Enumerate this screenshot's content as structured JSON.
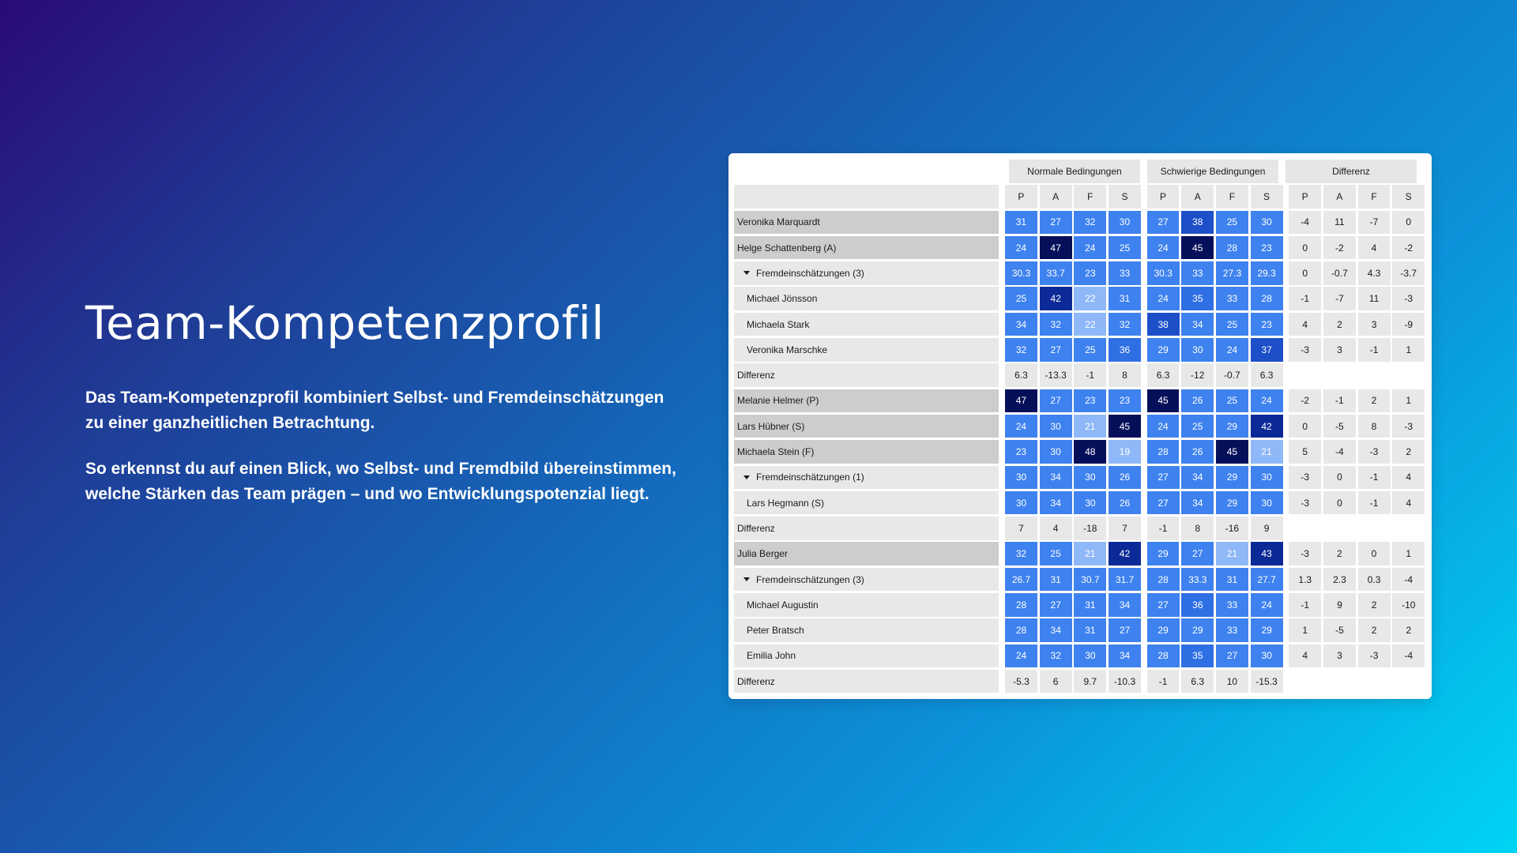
{
  "hero": {
    "title": "Team-Kompetenzprofil",
    "paragraph1": "Das Team-Kompetenzprofil kombiniert Selbst- und Fremdeinschätzungen\nzu einer ganzheitlichen Betrachtung.",
    "paragraph2": "So erkennst du auf einen Blick, wo Selbst- und Fremdbild übereinstimmen,\nwelche Stärken das Team prägen – und wo Entwicklungspotenzial liegt."
  },
  "table": {
    "group_headers": [
      "Normale Bedingungen",
      "Schwierige Bedingungen",
      "Differenz"
    ],
    "column_letters": [
      "P",
      "A",
      "F",
      "S"
    ],
    "rows": [
      {
        "label": "Veronika Marquardt",
        "kind": "person",
        "normal": [
          "31",
          "27",
          "32",
          "30"
        ],
        "schwierig": [
          "27",
          "38",
          "25",
          "30"
        ],
        "diff": [
          "-4",
          "11",
          "-7",
          "0"
        ]
      },
      {
        "label": "Helge Schattenberg (A)",
        "kind": "person",
        "normal": [
          "24",
          "47",
          "24",
          "25"
        ],
        "schwierig": [
          "24",
          "45",
          "28",
          "23"
        ],
        "diff": [
          "0",
          "-2",
          "4",
          "-2"
        ]
      },
      {
        "label": "Fremdeinschätzungen (3)",
        "kind": "group",
        "normal": [
          "30.3",
          "33.7",
          "23",
          "33"
        ],
        "schwierig": [
          "30.3",
          "33",
          "27.3",
          "29.3"
        ],
        "diff": [
          "0",
          "-0.7",
          "4.3",
          "-3.7"
        ]
      },
      {
        "label": "Michael Jönsson",
        "kind": "sub",
        "normal": [
          "25",
          "42",
          "22",
          "31"
        ],
        "schwierig": [
          "24",
          "35",
          "33",
          "28"
        ],
        "diff": [
          "-1",
          "-7",
          "11",
          "-3"
        ]
      },
      {
        "label": "Michaela Stark",
        "kind": "sub",
        "normal": [
          "34",
          "32",
          "22",
          "32"
        ],
        "schwierig": [
          "38",
          "34",
          "25",
          "23"
        ],
        "diff": [
          "4",
          "2",
          "3",
          "-9"
        ]
      },
      {
        "label": "Veronika Marschke",
        "kind": "sub",
        "normal": [
          "32",
          "27",
          "25",
          "36"
        ],
        "schwierig": [
          "29",
          "30",
          "24",
          "37"
        ],
        "diff": [
          "-3",
          "3",
          "-1",
          "1"
        ]
      },
      {
        "label": "Differenz",
        "kind": "differenz",
        "normal": [
          "6.3",
          "-13.3",
          "-1",
          "8"
        ],
        "schwierig": [
          "6.3",
          "-12",
          "-0.7",
          "6.3"
        ],
        "diff": []
      },
      {
        "label": "Melanie Helmer (P)",
        "kind": "person",
        "normal": [
          "47",
          "27",
          "23",
          "23"
        ],
        "schwierig": [
          "45",
          "26",
          "25",
          "24"
        ],
        "diff": [
          "-2",
          "-1",
          "2",
          "1"
        ]
      },
      {
        "label": "Lars Hübner (S)",
        "kind": "person",
        "normal": [
          "24",
          "30",
          "21",
          "45"
        ],
        "schwierig": [
          "24",
          "25",
          "29",
          "42"
        ],
        "diff": [
          "0",
          "-5",
          "8",
          "-3"
        ]
      },
      {
        "label": "Michaela Stein (F)",
        "kind": "person",
        "normal": [
          "23",
          "30",
          "48",
          "19"
        ],
        "schwierig": [
          "28",
          "26",
          "45",
          "21"
        ],
        "diff": [
          "5",
          "-4",
          "-3",
          "2"
        ]
      },
      {
        "label": "Fremdeinschätzungen (1)",
        "kind": "group",
        "normal": [
          "30",
          "34",
          "30",
          "26"
        ],
        "schwierig": [
          "27",
          "34",
          "29",
          "30"
        ],
        "diff": [
          "-3",
          "0",
          "-1",
          "4"
        ]
      },
      {
        "label": "Lars Hegmann (S)",
        "kind": "sub",
        "normal": [
          "30",
          "34",
          "30",
          "26"
        ],
        "schwierig": [
          "27",
          "34",
          "29",
          "30"
        ],
        "diff": [
          "-3",
          "0",
          "-1",
          "4"
        ]
      },
      {
        "label": "Differenz",
        "kind": "differenz",
        "normal": [
          "7",
          "4",
          "-18",
          "7"
        ],
        "schwierig": [
          "-1",
          "8",
          "-16",
          "9"
        ],
        "diff": []
      },
      {
        "label": "Julia Berger",
        "kind": "person",
        "normal": [
          "32",
          "25",
          "21",
          "42"
        ],
        "schwierig": [
          "29",
          "27",
          "21",
          "43"
        ],
        "diff": [
          "-3",
          "2",
          "0",
          "1"
        ]
      },
      {
        "label": "Fremdeinschätzungen (3)",
        "kind": "group",
        "normal": [
          "26.7",
          "31",
          "30.7",
          "31.7"
        ],
        "schwierig": [
          "28",
          "33.3",
          "31",
          "27.7"
        ],
        "diff": [
          "1.3",
          "2.3",
          "0.3",
          "-4"
        ]
      },
      {
        "label": "Michael Augustin",
        "kind": "sub",
        "normal": [
          "28",
          "27",
          "31",
          "34"
        ],
        "schwierig": [
          "27",
          "36",
          "33",
          "24"
        ],
        "diff": [
          "-1",
          "9",
          "2",
          "-10"
        ]
      },
      {
        "label": "Peter Bratsch",
        "kind": "sub",
        "normal": [
          "28",
          "34",
          "31",
          "27"
        ],
        "schwierig": [
          "29",
          "29",
          "33",
          "29"
        ],
        "diff": [
          "1",
          "-5",
          "2",
          "2"
        ]
      },
      {
        "label": "Emilia John",
        "kind": "sub",
        "normal": [
          "24",
          "32",
          "30",
          "34"
        ],
        "schwierig": [
          "28",
          "35",
          "27",
          "30"
        ],
        "diff": [
          "4",
          "3",
          "-3",
          "-4"
        ]
      },
      {
        "label": "Differenz",
        "kind": "differenz",
        "normal": [
          "-5.3",
          "6",
          "9.7",
          "-10.3"
        ],
        "schwierig": [
          "-1",
          "6.3",
          "10",
          "-15.3"
        ],
        "diff": []
      }
    ]
  },
  "colors": {
    "bg_start": "#2a0a78",
    "bg_end": "#00d4f5",
    "cell_light": "#8fb8f8",
    "cell_base": "#3e82ef",
    "cell_mid": "#2f6fe4",
    "cell_strong": "#1d4fc9",
    "cell_deep": "#0c2a97",
    "cell_darkest": "#060f5a",
    "row_person_bg": "#cdcdcd",
    "row_bg": "#e8e8e8"
  }
}
